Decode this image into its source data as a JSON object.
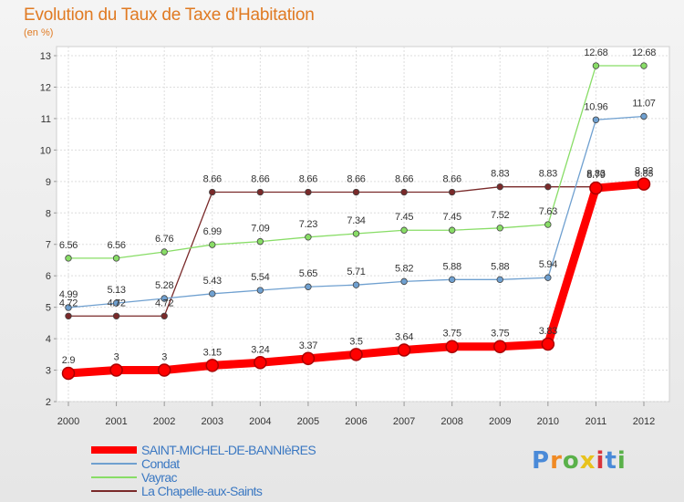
{
  "title": "Evolution du Taux de Taxe d'Habitation",
  "unit": "(en %)",
  "logo_text": "Proxiti",
  "chart_data": {
    "type": "line",
    "title": "Evolution du Taux de Taxe d'Habitation",
    "ylabel": "(en %)",
    "xlabel": "",
    "x": [
      "2000",
      "2001",
      "2002",
      "2003",
      "2004",
      "2005",
      "2006",
      "2007",
      "2008",
      "2009",
      "2010",
      "2011",
      "2012"
    ],
    "ylim": [
      2,
      13
    ],
    "yticks": [
      "2",
      "3",
      "4",
      "5",
      "6",
      "7",
      "8",
      "9",
      "10",
      "11",
      "12",
      "13"
    ],
    "grid": true,
    "legend_position": "bottom-left",
    "series": [
      {
        "name": "SAINT-MICHEL-DE-BANNIèRES",
        "color": "#ff0000",
        "values": [
          2.9,
          3,
          3,
          3.15,
          3.24,
          3.37,
          3.5,
          3.64,
          3.75,
          3.75,
          3.83,
          8.79,
          8.92
        ],
        "labels": [
          "2.9",
          "3",
          "3",
          "3.15",
          "3.24",
          "3.37",
          "3.5",
          "3.64",
          "3.75",
          "3.75",
          "3.83",
          "8.79",
          "8.92"
        ]
      },
      {
        "name": "Condat",
        "color": "#6fa0d0",
        "values": [
          4.99,
          5.13,
          5.28,
          5.43,
          5.54,
          5.65,
          5.71,
          5.82,
          5.88,
          5.88,
          5.94,
          10.96,
          11.07
        ],
        "labels": [
          "4.99",
          "5.13",
          "5.28",
          "5.43",
          "5.54",
          "5.65",
          "5.71",
          "5.82",
          "5.88",
          "5.88",
          "5.94",
          "10.96",
          "11.07"
        ]
      },
      {
        "name": "Vayrac",
        "color": "#88dd66",
        "values": [
          6.56,
          6.56,
          6.76,
          6.99,
          7.09,
          7.23,
          7.34,
          7.45,
          7.45,
          7.52,
          7.63,
          12.68,
          12.68
        ],
        "labels": [
          "6.56",
          "6.56",
          "6.76",
          "6.99",
          "7.09",
          "7.23",
          "7.34",
          "7.45",
          "7.45",
          "7.52",
          "7.63",
          "12.68",
          "12.68"
        ]
      },
      {
        "name": "La Chapelle-aux-Saints",
        "color": "#7a2a2a",
        "values": [
          4.72,
          4.72,
          4.72,
          8.66,
          8.66,
          8.66,
          8.66,
          8.66,
          8.66,
          8.83,
          8.83,
          8.83,
          8.83
        ],
        "labels": [
          "4.72",
          "4.72",
          "4.72",
          "8.66",
          "8.66",
          "8.66",
          "8.66",
          "8.66",
          "8.66",
          "8.83",
          "8.83",
          "8.83",
          "8.83"
        ]
      }
    ]
  }
}
